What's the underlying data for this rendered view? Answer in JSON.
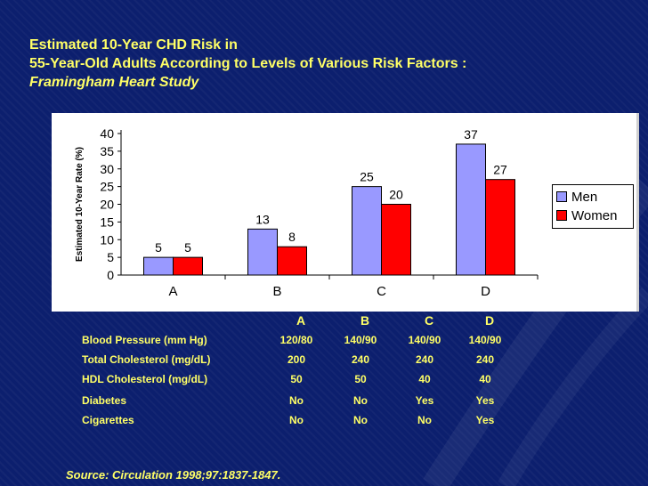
{
  "title": {
    "line1": "Estimated 10-Year CHD Risk in",
    "line2": "55-Year-Old Adults According to Levels of Various Risk Factors :",
    "line3": "Framingham Heart Study"
  },
  "chart_data": {
    "type": "bar",
    "categories": [
      "A",
      "B",
      "C",
      "D"
    ],
    "series": [
      {
        "name": "Men",
        "values": [
          5,
          13,
          25,
          37
        ],
        "color": "#9999ff"
      },
      {
        "name": "Women",
        "values": [
          5,
          8,
          20,
          27
        ],
        "color": "#ff0000"
      }
    ],
    "ylabel": "Estimated 10-Year Rate (%)",
    "ylim": [
      0,
      40
    ],
    "yticks": [
      "0",
      "5",
      "10",
      "15",
      "20",
      "25",
      "30",
      "35",
      "40"
    ],
    "legend": "right",
    "grid": false
  },
  "table": {
    "columns": [
      "A",
      "B",
      "C",
      "D"
    ],
    "rows": [
      {
        "label": "Blood Pressure (mm Hg)",
        "values": [
          "120/80",
          "140/90",
          "140/90",
          "140/90"
        ]
      },
      {
        "label": "Total Cholesterol (mg/dL)",
        "values": [
          "200",
          "240",
          "240",
          "240"
        ]
      },
      {
        "label": "HDL Cholesterol (mg/dL)",
        "values": [
          "50",
          "50",
          "40",
          "40"
        ]
      },
      {
        "label": "Diabetes",
        "values": [
          "No",
          "No",
          "Yes",
          "Yes"
        ]
      },
      {
        "label": "Cigarettes",
        "values": [
          "No",
          "No",
          "No",
          "Yes"
        ]
      }
    ]
  },
  "source": "Source:   Circulation 1998;97:1837-1847."
}
